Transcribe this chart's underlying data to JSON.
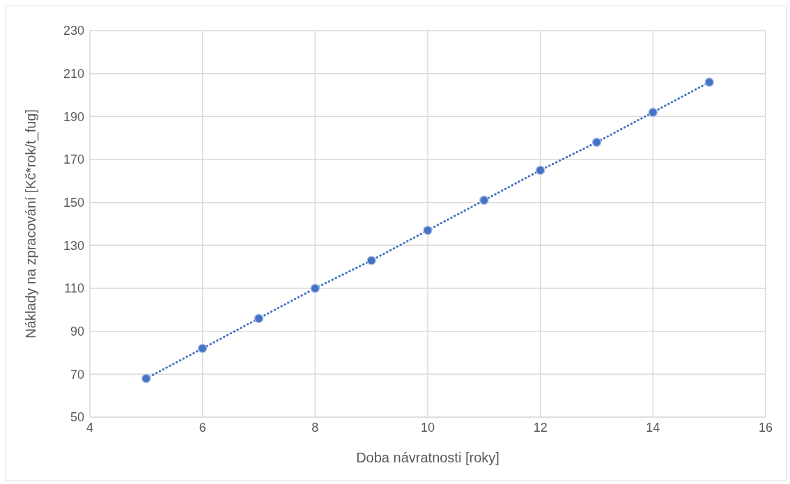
{
  "chart_data": {
    "type": "line",
    "xlabel": "Doba návratnosti [roky]",
    "ylabel": "Náklady na zpracování [Kč*rok/t_fug]",
    "x": [
      5,
      6,
      7,
      8,
      9,
      10,
      11,
      12,
      13,
      14,
      15
    ],
    "series": [
      {
        "color": "#4472c4",
        "values": [
          68,
          82,
          96,
          110,
          123,
          137,
          151,
          165,
          178,
          192,
          206
        ]
      }
    ],
    "xlim": [
      4,
      16
    ],
    "xticks": [
      4,
      6,
      8,
      10,
      12,
      14,
      16
    ],
    "ylim": [
      50,
      230
    ],
    "yticks": [
      50,
      70,
      90,
      110,
      130,
      150,
      170,
      190,
      210,
      230
    ],
    "grid": true,
    "marker": "circle",
    "line_style": "dotted"
  }
}
